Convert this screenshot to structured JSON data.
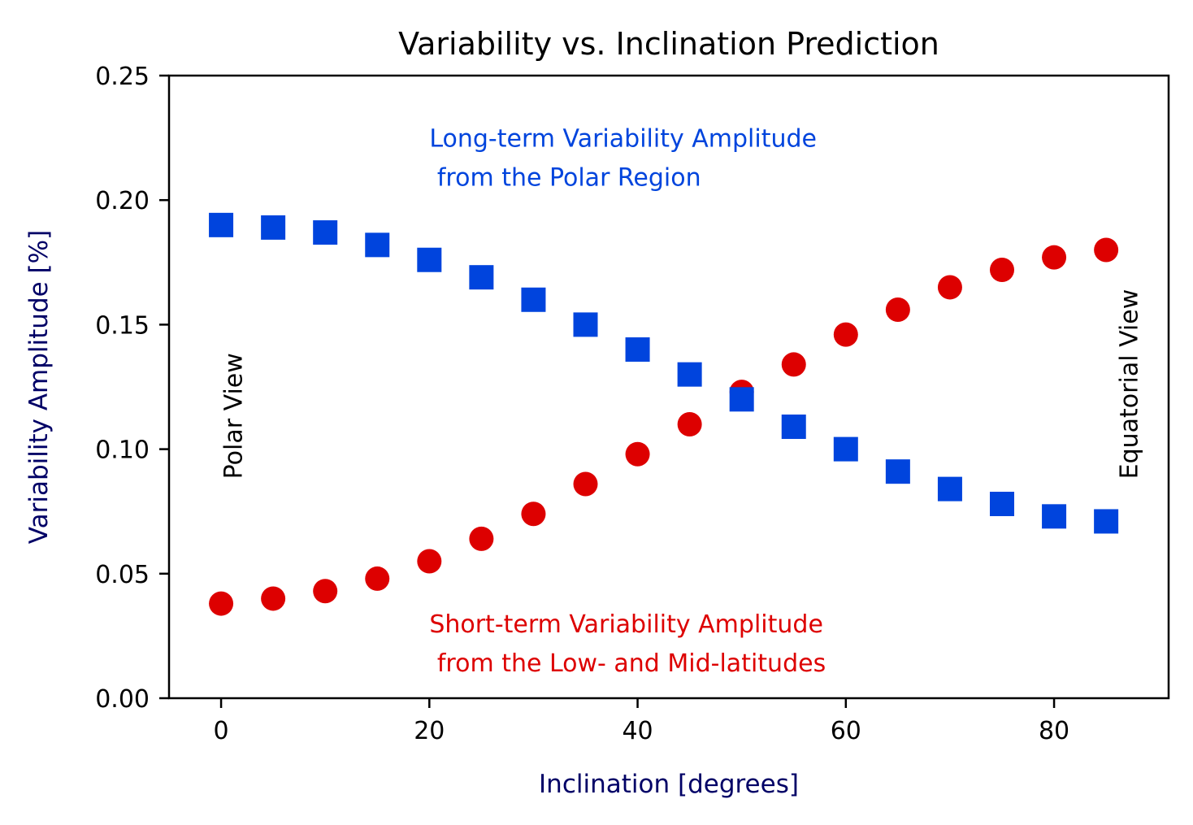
{
  "chart_data": {
    "type": "scatter",
    "title": "Variability vs. Inclination Prediction",
    "xlabel": "Inclination [degrees]",
    "ylabel": "Variability Amplitude [%]",
    "xlim": [
      -5,
      91
    ],
    "ylim": [
      0,
      0.25
    ],
    "x_ticks": [
      0,
      20,
      40,
      60,
      80
    ],
    "x_tick_labels": [
      "0",
      "20",
      "40",
      "60",
      "80"
    ],
    "y_ticks": [
      0,
      0.05,
      0.1,
      0.15,
      0.2,
      0.25
    ],
    "y_tick_labels": [
      "0.00",
      "0.05",
      "0.10",
      "0.15",
      "0.20",
      "0.25"
    ],
    "grid": false,
    "label_color": "#000066",
    "x": [
      0,
      5,
      10,
      15,
      20,
      25,
      30,
      35,
      40,
      45,
      50,
      55,
      60,
      65,
      70,
      75,
      80,
      85
    ],
    "series": [
      {
        "marker": "square",
        "color": "#0044dd",
        "values": [
          0.19,
          0.189,
          0.187,
          0.182,
          0.176,
          0.169,
          0.16,
          0.15,
          0.14,
          0.13,
          0.12,
          0.109,
          0.1,
          0.091,
          0.084,
          0.078,
          0.073,
          0.071
        ]
      },
      {
        "marker": "circle",
        "color": "#dd0000",
        "values": [
          0.038,
          0.04,
          0.043,
          0.048,
          0.055,
          0.064,
          0.074,
          0.086,
          0.098,
          0.11,
          0.123,
          0.134,
          0.146,
          0.156,
          0.165,
          0.172,
          0.177,
          0.18
        ]
      }
    ],
    "annotations": [
      {
        "lines": [
          "Long-term Variability Amplitude",
          " from the Polar Region"
        ],
        "color": "#0044dd",
        "x": 20,
        "y": 0.225
      },
      {
        "lines": [
          "Short-term Variability Amplitude",
          " from the Low- and Mid-latitudes"
        ],
        "color": "#dd0000",
        "x": 20,
        "y": 0.03
      },
      {
        "text": "Polar View",
        "color": "#000000",
        "x": 2,
        "y": 0.088,
        "rotate": true
      },
      {
        "text": "Equatorial View",
        "color": "#000000",
        "x": 88,
        "y": 0.088,
        "rotate": true
      }
    ]
  }
}
